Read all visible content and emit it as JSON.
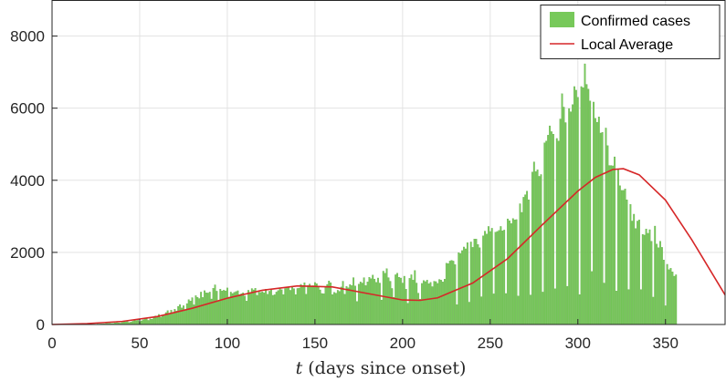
{
  "chart_data": {
    "type": "bar",
    "xlabel_var": "t",
    "xlabel_rest": "(days since onset)",
    "ylabel": "",
    "xlim": [
      0,
      384
    ],
    "ylim": [
      0,
      9000
    ],
    "x_ticks": [
      0,
      50,
      100,
      150,
      200,
      250,
      300,
      350
    ],
    "y_ticks": [
      0,
      2000,
      4000,
      6000,
      8000
    ],
    "grid": true,
    "legend_position": "top-right",
    "series": [
      {
        "name": "Confirmed cases",
        "kind": "bar",
        "color": "#77c95a",
        "edge_color": "#5aa83e",
        "x_start": 1,
        "values": [
          0,
          0,
          0,
          0,
          0,
          0,
          0,
          0,
          0,
          0,
          1,
          1,
          1,
          2,
          2,
          3,
          4,
          5,
          6,
          7,
          8,
          10,
          12,
          12,
          10,
          15,
          15,
          17,
          19,
          22,
          30,
          34,
          38,
          30,
          36,
          46,
          52,
          46,
          40,
          59,
          76,
          76,
          80,
          57,
          67,
          90,
          115,
          109,
          116,
          81,
          103,
          132,
          166,
          162,
          115,
          160,
          148,
          193,
          238,
          231,
          280,
          203,
          242,
          264,
          330,
          385,
          286,
          397,
          310,
          421,
          370,
          504,
          550,
          459,
          522,
          402,
          580,
          691,
          650,
          745,
          546,
          800,
          752,
          720,
          900,
          750,
          939,
          880,
          874,
          900,
          708,
          1003,
          1100,
          925,
          650,
          979,
          930,
          950,
          935,
          1015,
          760,
          900,
          860,
          890,
          913,
          937,
          830,
          855,
          880,
          790,
          650,
          950,
          890,
          998,
          960,
          1005,
          810,
          900,
          890,
          910,
          877,
          980,
          840,
          925,
          960,
          810,
          825,
          900,
          940,
          1020,
          965,
          830,
          1000,
          1020,
          1036,
          950,
          1035,
          995,
          830,
          1000,
          1010,
          1114,
          1080,
          1160,
          840,
          1079,
          1123,
          1075,
          1077,
          1165,
          1131,
          1070,
          961,
          860,
          853,
          1041,
          1112,
          1210,
          1160,
          830,
          890,
          870,
          950,
          920,
          1040,
          1200,
          840,
          1060,
          1020,
          1110,
          1080,
          1300,
          1070,
          640,
          1120,
          1180,
          1150,
          1300,
          1080,
          1180,
          1310,
          1270,
          1370,
          1260,
          1170,
          1290,
          1150,
          680,
          1480,
          1420,
          1550,
          1300,
          1200,
          1000,
          750,
          1380,
          1420,
          1310,
          1290,
          1150,
          1340,
          980,
          590,
          1280,
          1380,
          1230,
          1500,
          1150,
          870,
          700,
          1140,
          1220,
          1190,
          1230,
          1130,
          1170,
          1050,
          1200,
          1190,
          1140,
          1250,
          1230,
          1180,
          1260,
          1700,
          1690,
          1760,
          1780,
          1760,
          1660,
          550,
          1990,
          1970,
          2050,
          2150,
          2100,
          2270,
          620,
          2290,
          2140,
          2370,
          2370,
          2220,
          2130,
          770,
          2460,
          2590,
          2510,
          2720,
          2580,
          2670,
          850,
          2560,
          2580,
          2610,
          2720,
          2600,
          2620,
          860,
          2930,
          2880,
          2800,
          2940,
          2900,
          2910,
          790,
          3350,
          3110,
          3530,
          3600,
          3700,
          3460,
          820,
          4230,
          4510,
          4240,
          4290,
          4110,
          4160,
          900,
          5040,
          5090,
          5250,
          5510,
          5350,
          5280,
          990,
          5160,
          5090,
          5700,
          6400,
          6030,
          5600,
          1060,
          5990,
          5900,
          6100,
          6600,
          6500,
          6300,
          830,
          6600,
          6570,
          7230,
          6660,
          6530,
          6200,
          1470,
          6170,
          5720,
          5610,
          5760,
          5310,
          5330,
          1150,
          5450,
          4960,
          4410,
          4410,
          4400,
          4650,
          930,
          4290,
          3850,
          3720,
          3720,
          3760,
          3460,
          970,
          3330,
          2870,
          3060,
          2660,
          2870,
          2900,
          970,
          2500,
          2480,
          2650,
          2530,
          2630,
          2310,
          760,
          2730,
          2230,
          2130,
          2310,
          2140,
          1790,
          520,
          1670,
          1520,
          1560,
          1460,
          1340,
          1380
        ]
      },
      {
        "name": "Local Average",
        "kind": "line",
        "color": "#d62728",
        "x": [
          0,
          20,
          40,
          60,
          80,
          100,
          120,
          140,
          160,
          180,
          200,
          210,
          220,
          240,
          260,
          280,
          300,
          310,
          320,
          326,
          335,
          350,
          365,
          384
        ],
        "values": [
          0,
          25,
          85,
          220,
          450,
          730,
          950,
          1070,
          1040,
          860,
          680,
          670,
          740,
          1150,
          1830,
          2780,
          3700,
          4080,
          4300,
          4320,
          4150,
          3450,
          2350,
          820
        ]
      }
    ]
  }
}
